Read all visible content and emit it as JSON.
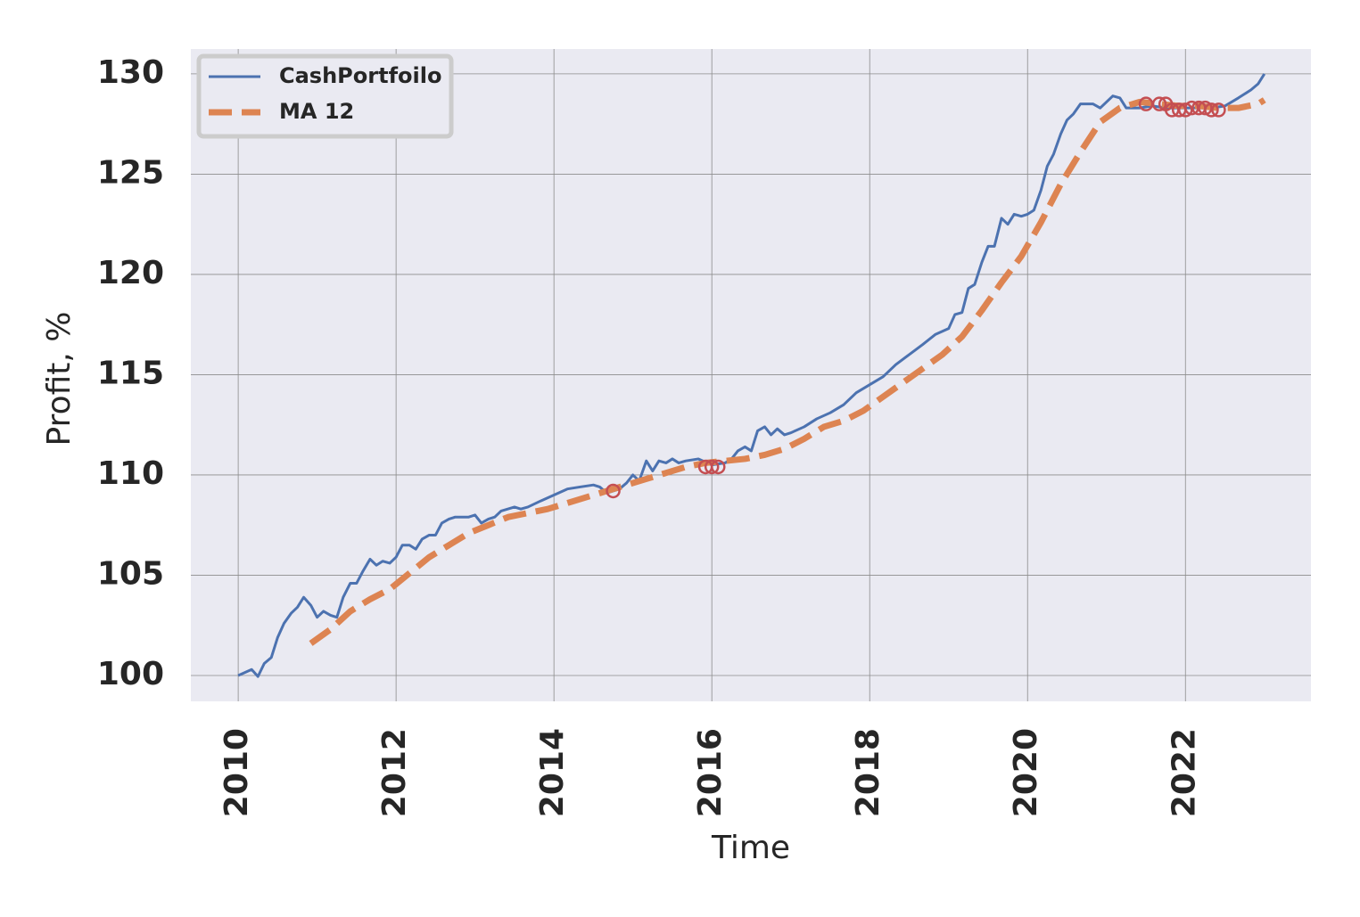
{
  "chart_data": {
    "type": "line",
    "xlabel": "Time",
    "ylabel": "Profit, %",
    "xlim": [
      2009.4,
      2023.59
    ],
    "ylim": [
      98.71,
      131.24
    ],
    "xticks": [
      2010,
      2012,
      2014,
      2016,
      2018,
      2020,
      2022
    ],
    "yticks": [
      100,
      105,
      110,
      115,
      120,
      125,
      130
    ],
    "grid": true,
    "legend": "upper left",
    "series": [
      {
        "name": "CashPortfoilo",
        "color": "#4c72b0",
        "style": "solid",
        "x": [
          2010.0,
          2010.17,
          2010.25,
          2010.33,
          2010.42,
          2010.5,
          2010.58,
          2010.67,
          2010.75,
          2010.83,
          2010.92,
          2011.0,
          2011.08,
          2011.17,
          2011.25,
          2011.33,
          2011.42,
          2011.5,
          2011.58,
          2011.67,
          2011.75,
          2011.83,
          2011.92,
          2012.0,
          2012.08,
          2012.17,
          2012.25,
          2012.33,
          2012.42,
          2012.5,
          2012.58,
          2012.67,
          2012.75,
          2012.92,
          2013.0,
          2013.08,
          2013.17,
          2013.25,
          2013.33,
          2013.5,
          2013.58,
          2013.67,
          2013.83,
          2014.0,
          2014.17,
          2014.33,
          2014.5,
          2014.58,
          2014.67,
          2014.83,
          2014.92,
          2015.0,
          2015.08,
          2015.17,
          2015.25,
          2015.33,
          2015.42,
          2015.5,
          2015.58,
          2015.67,
          2015.83,
          2016.0,
          2016.17,
          2016.25,
          2016.33,
          2016.42,
          2016.5,
          2016.58,
          2016.67,
          2016.75,
          2016.83,
          2016.92,
          2017.0,
          2017.17,
          2017.33,
          2017.5,
          2017.67,
          2017.83,
          2018.0,
          2018.17,
          2018.33,
          2018.5,
          2018.67,
          2018.83,
          2019.0,
          2019.08,
          2019.17,
          2019.25,
          2019.33,
          2019.42,
          2019.5,
          2019.58,
          2019.67,
          2019.75,
          2019.83,
          2019.92,
          2020.0,
          2020.08,
          2020.17,
          2020.25,
          2020.33,
          2020.42,
          2020.5,
          2020.58,
          2020.67,
          2020.75,
          2020.83,
          2020.92,
          2021.0,
          2021.08,
          2021.17,
          2021.25,
          2021.42,
          2021.58,
          2021.75,
          2022.0,
          2022.33,
          2022.5,
          2022.67,
          2022.75,
          2022.83,
          2022.92,
          2023.0
        ],
        "values": [
          100.0,
          100.3,
          99.95,
          100.6,
          100.9,
          101.9,
          102.6,
          103.1,
          103.4,
          103.9,
          103.5,
          102.9,
          103.2,
          103.0,
          102.9,
          103.9,
          104.6,
          104.6,
          105.2,
          105.8,
          105.5,
          105.7,
          105.6,
          105.9,
          106.5,
          106.5,
          106.3,
          106.8,
          107.0,
          107.0,
          107.6,
          107.8,
          107.9,
          107.9,
          108.0,
          107.6,
          107.8,
          107.9,
          108.2,
          108.4,
          108.3,
          108.4,
          108.7,
          109.0,
          109.3,
          109.4,
          109.5,
          109.4,
          109.1,
          109.3,
          109.6,
          110.0,
          109.7,
          110.7,
          110.2,
          110.7,
          110.6,
          110.8,
          110.6,
          110.7,
          110.8,
          110.5,
          110.6,
          110.8,
          111.2,
          111.4,
          111.2,
          112.2,
          112.4,
          112.0,
          112.3,
          112.0,
          112.1,
          112.4,
          112.8,
          113.1,
          113.5,
          114.1,
          114.5,
          114.9,
          115.5,
          116.0,
          116.5,
          117.0,
          117.3,
          118.0,
          118.1,
          119.3,
          119.5,
          120.6,
          121.4,
          121.4,
          122.8,
          122.5,
          123.0,
          122.9,
          123.0,
          123.2,
          124.2,
          125.4,
          126.0,
          127.0,
          127.7,
          128.0,
          128.5,
          128.5,
          128.5,
          128.3,
          128.6,
          128.9,
          128.8,
          128.3,
          128.3,
          128.4,
          128.3,
          128.3,
          128.3,
          128.4,
          128.8,
          129.0,
          129.2,
          129.5,
          130.0
        ]
      },
      {
        "name": "MA 12",
        "color": "#dd8452",
        "style": "dashed",
        "x": [
          2010.92,
          2011.17,
          2011.42,
          2011.67,
          2011.92,
          2012.17,
          2012.42,
          2012.67,
          2012.92,
          2013.17,
          2013.42,
          2013.67,
          2013.92,
          2014.17,
          2014.42,
          2014.67,
          2014.92,
          2015.17,
          2015.42,
          2015.67,
          2015.92,
          2016.17,
          2016.42,
          2016.67,
          2016.92,
          2017.17,
          2017.42,
          2017.67,
          2017.92,
          2018.17,
          2018.42,
          2018.67,
          2018.92,
          2019.17,
          2019.42,
          2019.67,
          2019.92,
          2020.17,
          2020.42,
          2020.67,
          2020.92,
          2021.17,
          2021.42,
          2021.67,
          2021.92,
          2022.17,
          2022.42,
          2022.67,
          2022.92,
          2023.0
        ],
        "values": [
          101.6,
          102.3,
          103.2,
          103.8,
          104.3,
          105.1,
          105.9,
          106.5,
          107.1,
          107.5,
          107.9,
          108.1,
          108.3,
          108.6,
          108.9,
          109.2,
          109.5,
          109.8,
          110.1,
          110.4,
          110.6,
          110.7,
          110.8,
          111.0,
          111.3,
          111.8,
          112.4,
          112.7,
          113.2,
          113.9,
          114.6,
          115.3,
          116.0,
          116.9,
          118.2,
          119.6,
          120.9,
          122.6,
          124.5,
          126.1,
          127.6,
          128.3,
          128.6,
          128.5,
          128.4,
          128.4,
          128.3,
          128.3,
          128.5,
          128.7
        ]
      }
    ],
    "markers": {
      "color": "#c44e52",
      "x": [
        2014.75,
        2015.92,
        2016.0,
        2016.08,
        2021.5,
        2021.67,
        2021.75,
        2021.83,
        2021.92,
        2022.0,
        2022.08,
        2022.17,
        2022.25,
        2022.33,
        2022.42
      ],
      "values": [
        109.2,
        110.4,
        110.4,
        110.4,
        128.5,
        128.5,
        128.5,
        128.2,
        128.2,
        128.2,
        128.3,
        128.3,
        128.3,
        128.2,
        128.2
      ]
    }
  }
}
